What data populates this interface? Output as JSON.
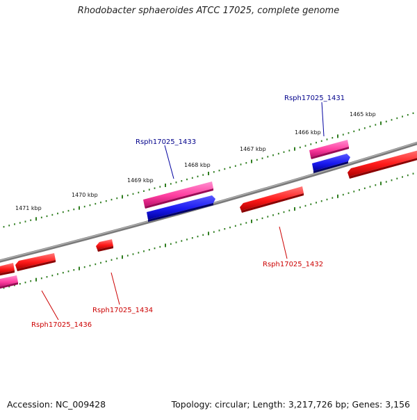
{
  "title": "Rhodobacter sphaeroides ATCC 17025, complete genome",
  "footer": {
    "accession": "Accession: NC_009428",
    "summary": "Topology: circular; Length: 3,217,726 bp; Genes: 3,156"
  },
  "colors": {
    "backbone": "#808080",
    "tick": "#2e7d1f",
    "gene_forward_pink": "#ff3fa0",
    "gene_forward_blue": "#1a1af0",
    "gene_reverse_red": "#ff1a1a",
    "label_forward": "#00008b",
    "label_reverse": "#cc0000"
  },
  "outer_scale_labels": [
    "1465 kbp",
    "1466 kbp",
    "1467 kbp",
    "1468 kbp",
    "1469 kbp",
    "1470 kbp",
    "1471 kbp"
  ],
  "gene_labels": {
    "rsph1431": "Rsph17025_1431",
    "rsph1433": "Rsph17025_1433",
    "rsph1432": "Rsph17025_1432",
    "rsph1434": "Rsph17025_1434",
    "rsph1436": "Rsph17025_1436"
  }
}
